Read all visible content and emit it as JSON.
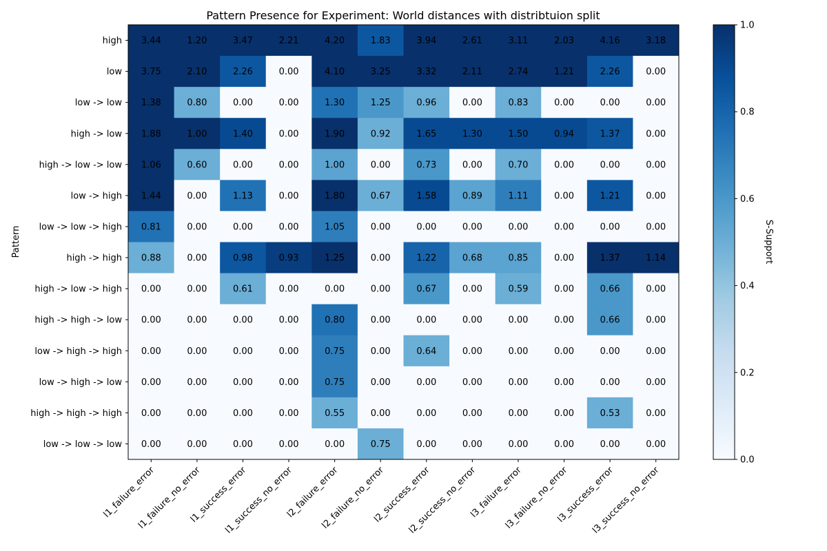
{
  "chart_data": {
    "type": "heatmap",
    "title": "Pattern Presence for Experiment: World distances with distribtuion split",
    "ylabel": "Pattern",
    "xlabel": "",
    "colorbar_label": "S-Support",
    "colorbar_range": [
      0.0,
      1.0
    ],
    "colorbar_ticks": [
      "0.0",
      "0.2",
      "0.4",
      "0.6",
      "0.8",
      "1.0"
    ],
    "colormap": "Blues",
    "columns": [
      "l1_failure_error",
      "l1_failure_no_error",
      "l1_success_error",
      "l1_success_no_error",
      "l2_failure_error",
      "l2_failure_no_error",
      "l2_success_error",
      "l2_success_no_error",
      "l3_failure_error",
      "l3_failure_no_error",
      "l3_success_error",
      "l3_success_no_error"
    ],
    "rows": [
      "high",
      "low",
      "low -> low",
      "high -> low",
      "high -> low -> low",
      "low -> high",
      "low -> low -> high",
      "high -> high",
      "high -> low -> high",
      "high -> high -> low",
      "low -> high -> high",
      "low -> high -> low",
      "high -> high -> high",
      "low -> low -> low"
    ],
    "labels": [
      [
        "3.44",
        "1.20",
        "3.47",
        "2.21",
        "4.20",
        "1.83",
        "3.94",
        "2.61",
        "3.11",
        "2.03",
        "4.16",
        "3.18"
      ],
      [
        "3.75",
        "2.10",
        "2.26",
        "0.00",
        "4.10",
        "3.25",
        "3.32",
        "2.11",
        "2.74",
        "1.21",
        "2.26",
        "0.00"
      ],
      [
        "1.38",
        "0.80",
        "0.00",
        "0.00",
        "1.30",
        "1.25",
        "0.96",
        "0.00",
        "0.83",
        "0.00",
        "0.00",
        "0.00"
      ],
      [
        "1.88",
        "1.00",
        "1.40",
        "0.00",
        "1.90",
        "0.92",
        "1.65",
        "1.30",
        "1.50",
        "0.94",
        "1.37",
        "0.00"
      ],
      [
        "1.06",
        "0.60",
        "0.00",
        "0.00",
        "1.00",
        "0.00",
        "0.73",
        "0.00",
        "0.70",
        "0.00",
        "0.00",
        "0.00"
      ],
      [
        "1.44",
        "0.00",
        "1.13",
        "0.00",
        "1.80",
        "0.67",
        "1.58",
        "0.89",
        "1.11",
        "0.00",
        "1.21",
        "0.00"
      ],
      [
        "0.81",
        "0.00",
        "0.00",
        "0.00",
        "1.05",
        "0.00",
        "0.00",
        "0.00",
        "0.00",
        "0.00",
        "0.00",
        "0.00"
      ],
      [
        "0.88",
        "0.00",
        "0.98",
        "0.93",
        "1.25",
        "0.00",
        "1.22",
        "0.68",
        "0.85",
        "0.00",
        "1.37",
        "1.14"
      ],
      [
        "0.00",
        "0.00",
        "0.61",
        "0.00",
        "0.00",
        "0.00",
        "0.67",
        "0.00",
        "0.59",
        "0.00",
        "0.66",
        "0.00"
      ],
      [
        "0.00",
        "0.00",
        "0.00",
        "0.00",
        "0.80",
        "0.00",
        "0.00",
        "0.00",
        "0.00",
        "0.00",
        "0.66",
        "0.00"
      ],
      [
        "0.00",
        "0.00",
        "0.00",
        "0.00",
        "0.75",
        "0.00",
        "0.64",
        "0.00",
        "0.00",
        "0.00",
        "0.00",
        "0.00"
      ],
      [
        "0.00",
        "0.00",
        "0.00",
        "0.00",
        "0.75",
        "0.00",
        "0.00",
        "0.00",
        "0.00",
        "0.00",
        "0.00",
        "0.00"
      ],
      [
        "0.00",
        "0.00",
        "0.00",
        "0.00",
        "0.55",
        "0.00",
        "0.00",
        "0.00",
        "0.00",
        "0.00",
        "0.53",
        "0.00"
      ],
      [
        "0.00",
        "0.00",
        "0.00",
        "0.00",
        "0.00",
        "0.75",
        "0.00",
        "0.00",
        "0.00",
        "0.00",
        "0.00",
        "0.00"
      ]
    ],
    "support": [
      [
        1.0,
        1.0,
        1.0,
        1.0,
        1.0,
        0.85,
        1.0,
        1.0,
        1.0,
        1.0,
        1.0,
        1.0
      ],
      [
        1.0,
        1.0,
        0.85,
        0.0,
        1.0,
        1.0,
        1.0,
        1.0,
        1.0,
        1.0,
        0.85,
        0.0
      ],
      [
        1.0,
        0.5,
        0.0,
        0.0,
        0.75,
        0.6,
        0.5,
        0.0,
        0.5,
        0.0,
        0.0,
        0.0
      ],
      [
        1.0,
        1.0,
        0.9,
        0.0,
        1.0,
        0.5,
        0.9,
        0.9,
        0.9,
        0.9,
        0.85,
        0.0
      ],
      [
        1.0,
        0.5,
        0.0,
        0.0,
        0.55,
        0.0,
        0.6,
        0.0,
        0.5,
        0.0,
        0.0,
        0.0
      ],
      [
        1.0,
        0.0,
        0.75,
        0.0,
        1.0,
        0.5,
        0.9,
        0.55,
        0.7,
        0.0,
        0.85,
        0.0
      ],
      [
        0.75,
        0.0,
        0.0,
        0.0,
        0.7,
        0.0,
        0.0,
        0.0,
        0.0,
        0.0,
        0.0,
        0.0
      ],
      [
        0.5,
        0.0,
        0.85,
        0.95,
        1.0,
        0.0,
        0.8,
        0.55,
        0.55,
        0.0,
        1.0,
        1.0
      ],
      [
        0.0,
        0.0,
        0.5,
        0.0,
        0.0,
        0.0,
        0.6,
        0.0,
        0.5,
        0.0,
        0.6,
        0.0
      ],
      [
        0.0,
        0.0,
        0.0,
        0.0,
        0.75,
        0.0,
        0.0,
        0.0,
        0.0,
        0.0,
        0.6,
        0.0
      ],
      [
        0.0,
        0.0,
        0.0,
        0.0,
        0.7,
        0.0,
        0.5,
        0.0,
        0.0,
        0.0,
        0.0,
        0.0
      ],
      [
        0.0,
        0.0,
        0.0,
        0.0,
        0.7,
        0.0,
        0.0,
        0.0,
        0.0,
        0.0,
        0.0,
        0.0
      ],
      [
        0.0,
        0.0,
        0.0,
        0.0,
        0.5,
        0.0,
        0.0,
        0.0,
        0.0,
        0.0,
        0.5,
        0.0
      ],
      [
        0.0,
        0.0,
        0.0,
        0.0,
        0.0,
        0.5,
        0.0,
        0.0,
        0.0,
        0.0,
        0.0,
        0.0
      ]
    ]
  }
}
